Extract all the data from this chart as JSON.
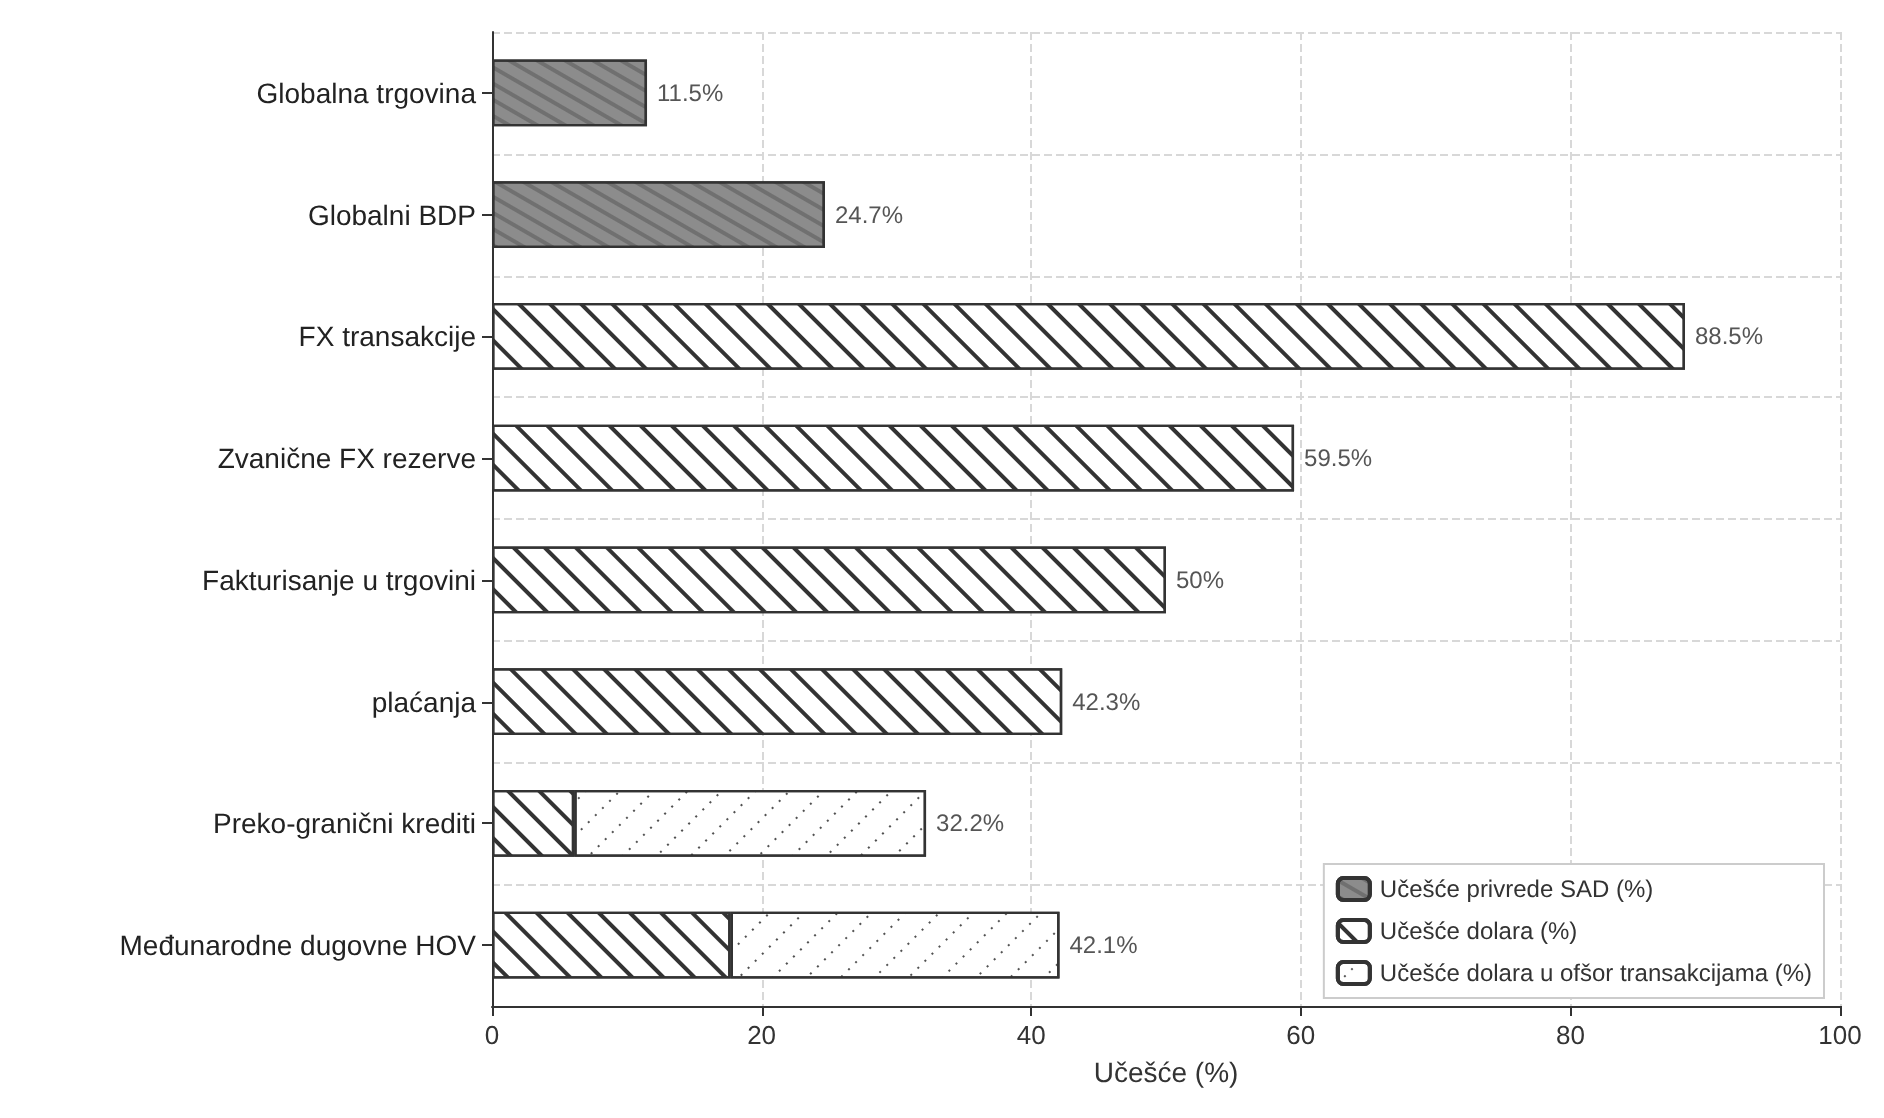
{
  "chart_data": {
    "type": "bar",
    "orientation": "horizontal",
    "stacked": true,
    "xlabel": "Učešće (%)",
    "categories": [
      "Globalna trgovina",
      "Globalni BDP",
      "FX transakcije",
      "Zvanične FX rezerve",
      "Fakturisanje u trgovini",
      "plaćanja",
      "Preko-granični krediti",
      "Međunarodne dugovne HOV"
    ],
    "series": [
      {
        "name": "Učešće privrede SAD (%)",
        "color": "#8c8c8c",
        "values": [
          11.5,
          24.7,
          null,
          null,
          null,
          null,
          null,
          null
        ]
      },
      {
        "name": "Učešće dolara (%)",
        "color": "#ffffff",
        "values": [
          null,
          null,
          88.5,
          59.5,
          50,
          42.3,
          6.1,
          17.7
        ]
      },
      {
        "name": "Učešće dolara u ofšor transakcijama (%)",
        "color": "#ffffff",
        "values": [
          null,
          null,
          null,
          null,
          null,
          null,
          26.1,
          24.4
        ]
      }
    ],
    "totals": [
      "11.5%",
      "24.7%",
      "88.5%",
      "59.5%",
      "50%",
      "42.3%",
      "32.2%",
      "42.1%"
    ],
    "xlim": [
      0,
      100
    ],
    "xticks": [
      0,
      20,
      40,
      60,
      80,
      100
    ],
    "grid": true,
    "legend": "bottom right"
  }
}
